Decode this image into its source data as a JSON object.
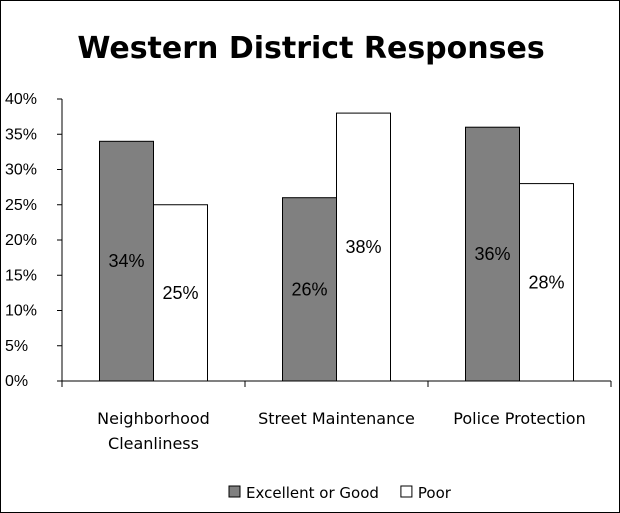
{
  "chart_data": {
    "type": "bar",
    "title": "Western District Responses",
    "categories": [
      "Neighborhood Cleanliness",
      "Street Maintenance",
      "Police Protection"
    ],
    "category_lines": [
      [
        "Neighborhood",
        "Cleanliness"
      ],
      [
        "Street Maintenance"
      ],
      [
        "Police Protection"
      ]
    ],
    "series": [
      {
        "name": "Excellent or Good",
        "values": [
          34,
          26,
          36
        ],
        "labels": [
          "34%",
          "26%",
          "36%"
        ],
        "color": "#808080"
      },
      {
        "name": "Poor",
        "values": [
          25,
          38,
          28
        ],
        "labels": [
          "25%",
          "38%",
          "28%"
        ],
        "color": "#ffffff"
      }
    ],
    "ylim": [
      0,
      40
    ],
    "yticks": [
      "0%",
      "5%",
      "10%",
      "15%",
      "20%",
      "25%",
      "30%",
      "35%",
      "40%"
    ],
    "grid": false,
    "legend_position": "bottom"
  }
}
